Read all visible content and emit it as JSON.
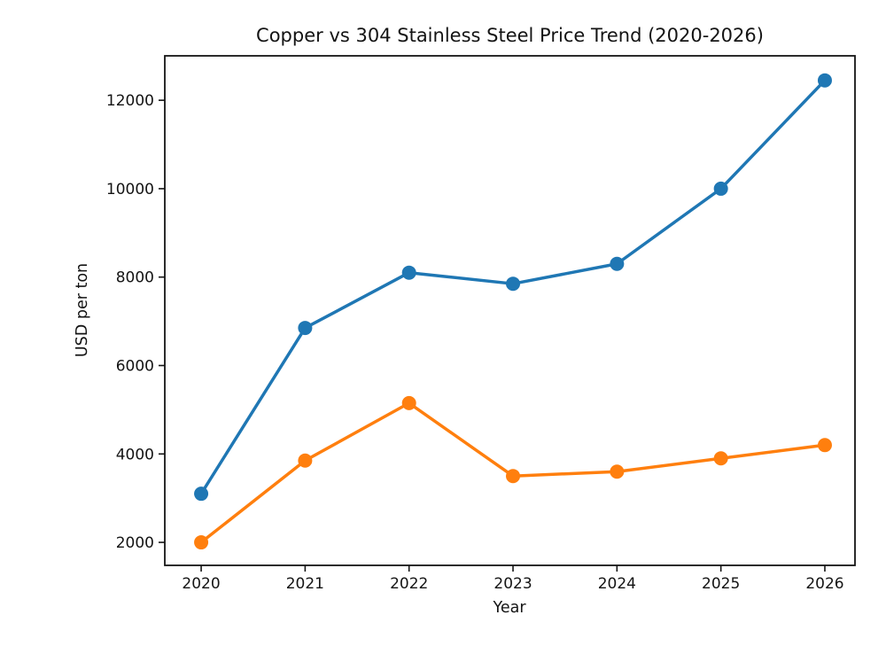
{
  "figure": {
    "background": "#ffffff",
    "text_color": "#141414"
  },
  "chart_data": {
    "type": "line",
    "title": "Copper vs 304 Stainless Steel Price Trend (2020-2026)",
    "xlabel": "Year",
    "ylabel": "USD per ton",
    "x": [
      2020,
      2021,
      2022,
      2023,
      2024,
      2025,
      2026
    ],
    "series": [
      {
        "name": "Copper",
        "color": "#1f77b4",
        "values": [
          3100,
          6850,
          8100,
          7850,
          8300,
          10000,
          12450
        ]
      },
      {
        "name": "304 Stainless Steel",
        "color": "#ff7f0e",
        "values": [
          2000,
          3850,
          5150,
          3500,
          3600,
          3900,
          4200
        ]
      }
    ],
    "xticks": [
      2020,
      2021,
      2022,
      2023,
      2024,
      2025,
      2026
    ],
    "yticks": [
      2000,
      4000,
      6000,
      8000,
      10000,
      12000
    ],
    "xlim": [
      2019.65,
      2026.29
    ],
    "ylim": [
      1480,
      13005
    ],
    "grid": false,
    "legend": "none",
    "marker": "circle"
  }
}
